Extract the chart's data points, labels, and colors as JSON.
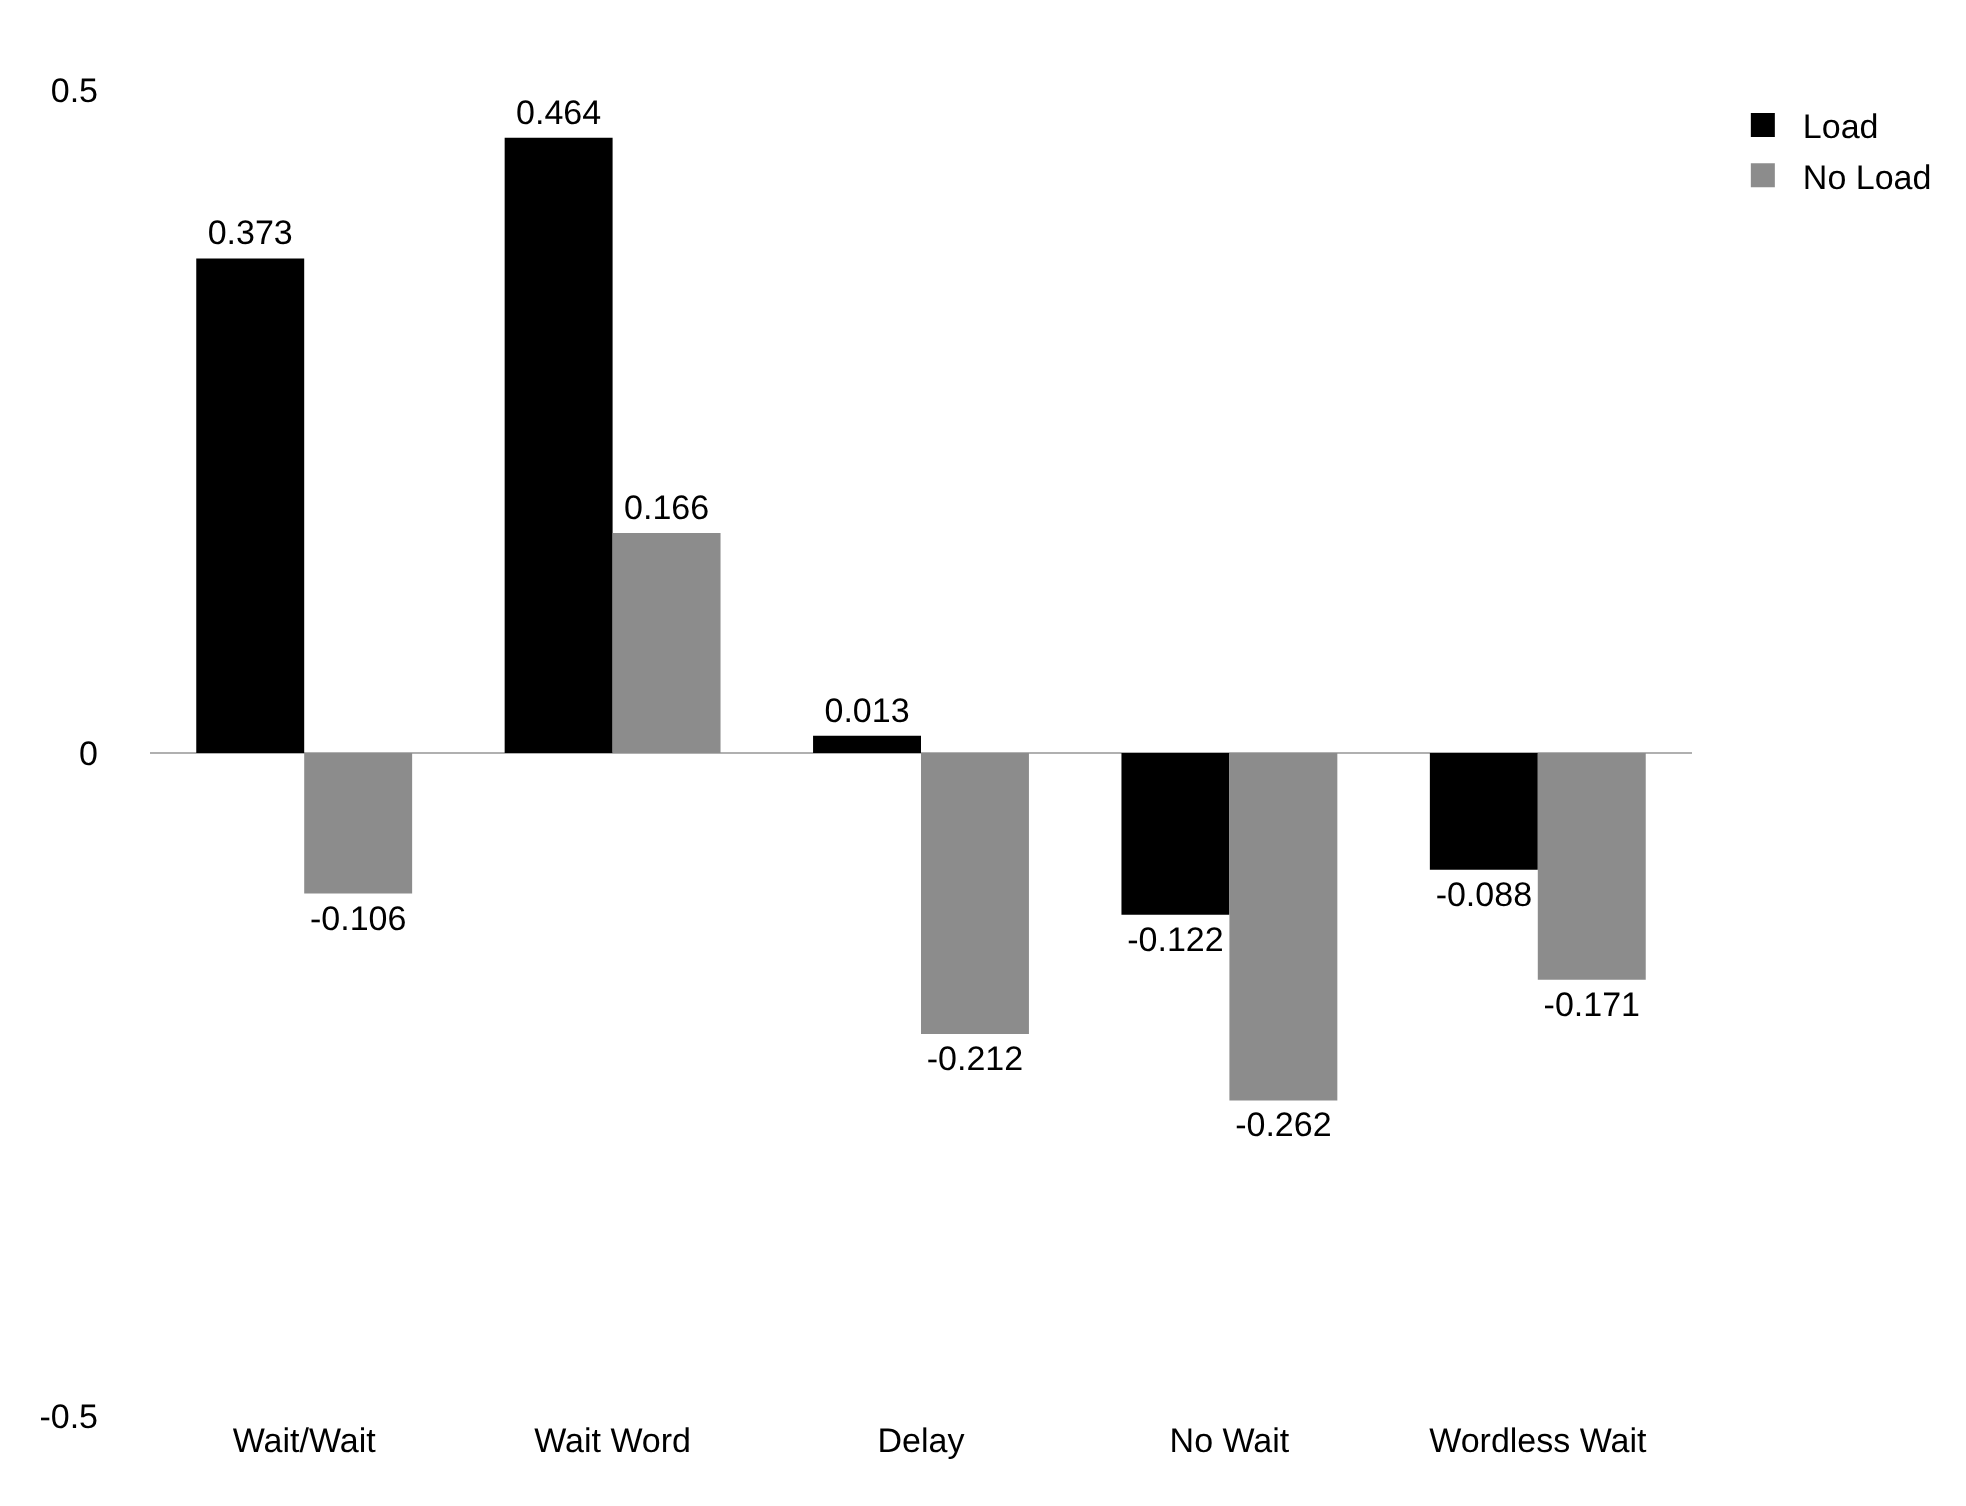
{
  "chart_data": {
    "type": "bar",
    "categories": [
      "Wait/Wait",
      "Wait Word",
      "Delay",
      "No Wait",
      "Wordless Wait"
    ],
    "series": [
      {
        "name": "Load",
        "color": "#000000",
        "values": [
          0.373,
          0.464,
          0.013,
          -0.122,
          -0.088
        ]
      },
      {
        "name": "No Load",
        "color": "#8c8c8c",
        "values": [
          -0.106,
          0.166,
          -0.212,
          -0.262,
          -0.171
        ]
      }
    ],
    "ylim": [
      -0.5,
      0.5
    ],
    "yticks": [
      -0.5,
      0,
      0.5
    ],
    "grid": "y",
    "legend": "right",
    "data_labels": true
  }
}
